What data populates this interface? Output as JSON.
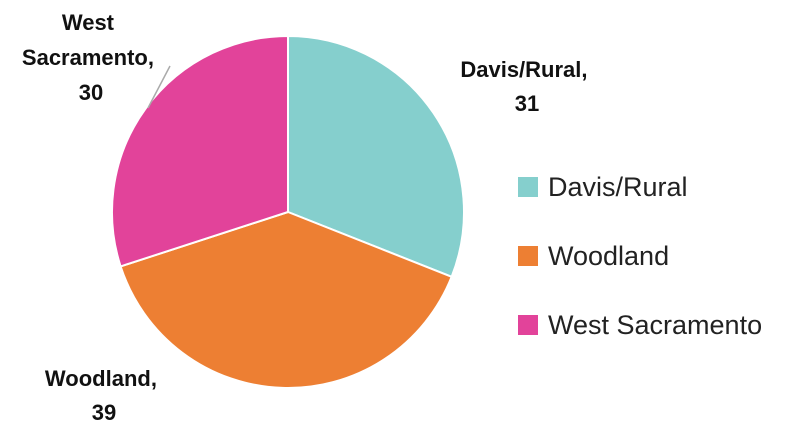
{
  "chart_data": {
    "type": "pie",
    "categories": [
      "Davis/Rural",
      "Woodland",
      "West Sacramento"
    ],
    "values": [
      31,
      39,
      30
    ],
    "colors": [
      "#85cfcd",
      "#ed7f33",
      "#e2439a"
    ],
    "data_labels": [
      {
        "name": "Davis/Rural,",
        "value": "31"
      },
      {
        "name": "Woodland,",
        "value": "39"
      },
      {
        "name_lines": [
          "West",
          "Sacramento,"
        ],
        "value": "30"
      }
    ],
    "legend": {
      "placement": "right",
      "entries": [
        "Davis/Rural",
        "Woodland",
        "West Sacramento"
      ]
    }
  }
}
